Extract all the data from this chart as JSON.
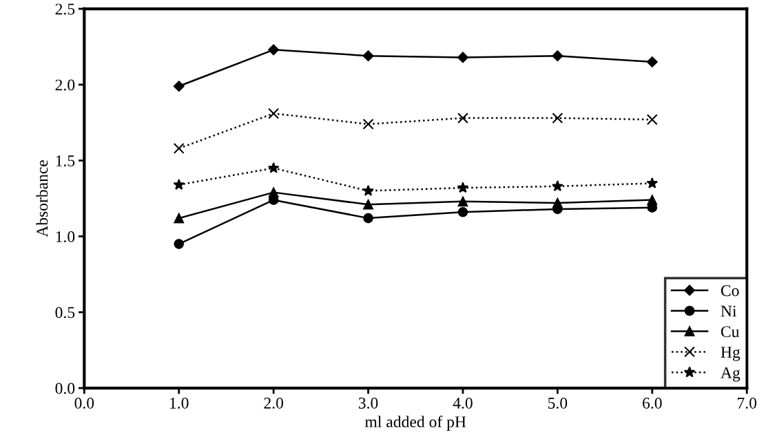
{
  "chart_data": {
    "type": "line",
    "xlabel": "ml added of pH",
    "ylabel": "Absorbance",
    "x": [
      1.0,
      2.0,
      3.0,
      4.0,
      5.0,
      6.0
    ],
    "xlim": [
      0,
      7
    ],
    "xticks": [
      {
        "value": 0,
        "label": "0.0"
      },
      {
        "value": 1,
        "label": "1.0"
      },
      {
        "value": 2,
        "label": "2.0"
      },
      {
        "value": 3,
        "label": "3.0"
      },
      {
        "value": 4,
        "label": "4.0"
      },
      {
        "value": 5,
        "label": "5.0"
      },
      {
        "value": 6,
        "label": "6.0"
      },
      {
        "value": 7,
        "label": "7.0"
      }
    ],
    "ylim": [
      0,
      2.5
    ],
    "yticks": [
      {
        "value": 0,
        "label": "0.0"
      },
      0.5,
      {
        "value": 1,
        "label": "1.0"
      },
      1.5,
      {
        "value": 2,
        "label": "2.0"
      },
      2.5
    ],
    "grid": false,
    "legend": "bottom right",
    "series": [
      {
        "name": "Co",
        "color": "#000000",
        "marker": "diamond",
        "line_style": "solid",
        "values": [
          1.99,
          2.23,
          2.19,
          2.18,
          2.19,
          2.15
        ]
      },
      {
        "name": "Ni",
        "color": "#000000",
        "marker": "circle",
        "line_style": "solid",
        "values": [
          0.95,
          1.24,
          1.12,
          1.16,
          1.18,
          1.19
        ]
      },
      {
        "name": "Cu",
        "color": "#000000",
        "marker": "triangle",
        "line_style": "solid",
        "values": [
          1.12,
          1.29,
          1.21,
          1.23,
          1.22,
          1.24
        ]
      },
      {
        "name": "Hg",
        "color": "#000000",
        "marker": "cross",
        "line_style": "dotted",
        "values": [
          1.58,
          1.81,
          1.74,
          1.78,
          1.78,
          1.77
        ]
      },
      {
        "name": "Ag",
        "color": "#000000",
        "marker": "star",
        "line_style": "dotted",
        "values": [
          1.34,
          1.45,
          1.3,
          1.32,
          1.33,
          1.35
        ]
      }
    ]
  }
}
